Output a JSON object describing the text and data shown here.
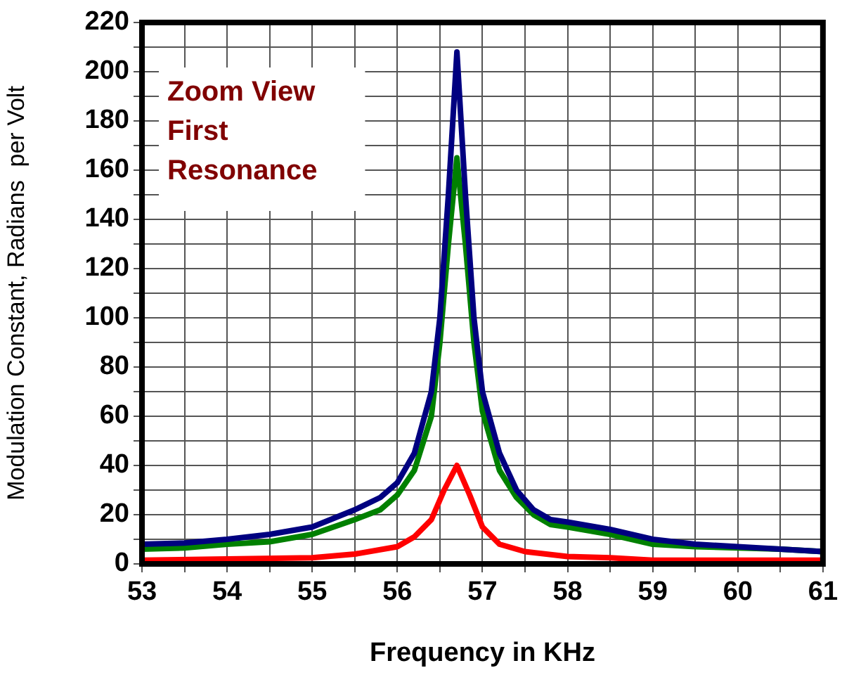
{
  "chart_data": {
    "type": "line",
    "xlabel": "Frequency in KHz",
    "ylabel": "Modulation Constant, Radians  per Volt",
    "annotations": [
      "Zoom View First Resonance"
    ],
    "series": [
      {
        "color": "#000080",
        "x": [
          53,
          53.5,
          54,
          54.5,
          55,
          55.5,
          55.8,
          56,
          56.2,
          56.4,
          56.5,
          56.6,
          56.7,
          56.8,
          56.9,
          57,
          57.2,
          57.4,
          57.6,
          57.8,
          58,
          58.5,
          59,
          59.5,
          60,
          60.5,
          61
        ],
        "values": [
          8,
          8.5,
          10,
          12,
          15,
          22,
          27,
          33,
          45,
          70,
          100,
          150,
          208,
          150,
          100,
          70,
          45,
          30,
          22,
          18,
          17,
          14,
          10,
          8,
          7,
          6,
          5
        ]
      },
      {
        "color": "#008000",
        "x": [
          53,
          53.5,
          54,
          54.5,
          55,
          55.5,
          55.8,
          56,
          56.2,
          56.4,
          56.5,
          56.6,
          56.7,
          56.8,
          56.9,
          57,
          57.2,
          57.4,
          57.6,
          57.8,
          58,
          58.5,
          59,
          59.5,
          60,
          60.5,
          61
        ],
        "values": [
          6,
          6.5,
          8,
          9,
          12,
          18,
          22,
          28,
          38,
          60,
          90,
          130,
          165,
          130,
          90,
          62,
          38,
          27,
          20,
          16,
          15,
          12,
          8,
          7,
          6.5,
          6,
          5
        ]
      },
      {
        "color": "#ff0000",
        "x": [
          53,
          54,
          55,
          55.5,
          56,
          56.2,
          56.4,
          56.55,
          56.7,
          56.85,
          57,
          57.2,
          57.5,
          58,
          58.5,
          59,
          60,
          61
        ],
        "values": [
          1.5,
          2,
          2.5,
          4,
          7,
          11,
          18,
          30,
          40,
          28,
          15,
          8,
          5,
          3,
          2.5,
          1.5,
          1.5,
          1.5
        ]
      }
    ],
    "xlim": [
      53,
      61
    ],
    "xticks": [
      53,
      {
        "value": 53.5,
        "label": null
      },
      54,
      {
        "value": 54.5,
        "label": null
      },
      55,
      {
        "value": 55.5,
        "label": null
      },
      56,
      {
        "value": 56.5,
        "label": null
      },
      57,
      {
        "value": 57.5,
        "label": null
      },
      58,
      {
        "value": 58.5,
        "label": null
      },
      59,
      {
        "value": 59.5,
        "label": null
      },
      60,
      {
        "value": 60.5,
        "label": null
      },
      61
    ],
    "ylim": [
      0,
      220
    ],
    "yticks": [
      0,
      {
        "value": 10,
        "label": null
      },
      20,
      {
        "value": 30,
        "label": null
      },
      40,
      {
        "value": 50,
        "label": null
      },
      60,
      {
        "value": 70,
        "label": null
      },
      80,
      {
        "value": 90,
        "label": null
      },
      100,
      {
        "value": 110,
        "label": null
      },
      120,
      {
        "value": 130,
        "label": null
      },
      140,
      {
        "value": 150,
        "label": null
      },
      160,
      {
        "value": 170,
        "label": null
      },
      180,
      {
        "value": 190,
        "label": null
      },
      200,
      {
        "value": 210,
        "label": null
      },
      220
    ],
    "grid": true,
    "legend": false,
    "marker": "none",
    "line_style": "solid"
  }
}
